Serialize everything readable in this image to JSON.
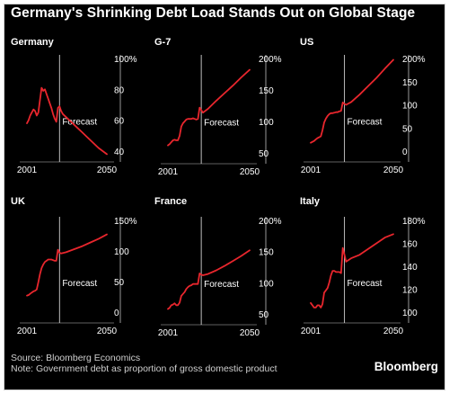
{
  "title": "Germany's Shrinking Debt Load Stands Out on Global Stage",
  "source": "Source: Bloomberg Economics",
  "note": "Note: Government debt as proportion of gross domestic product",
  "brand": "Bloomberg",
  "colors": {
    "background": "#000000",
    "line": "#e8262d",
    "text": "#ffffff",
    "divider": "#bfbfbf"
  },
  "chart_data": [
    {
      "type": "line",
      "title": "Germany",
      "forecast_label": "Forecast",
      "forecast_start": 2021,
      "xlim": [
        2001,
        2050
      ],
      "x_ticks": [
        2001,
        2050
      ],
      "ylim": [
        36,
        102
      ],
      "y_ticks": [
        40,
        60,
        80,
        100
      ],
      "y_tick_labels": [
        "40",
        "60",
        "80",
        "100%"
      ],
      "series": [
        {
          "x": [
            2001,
            2002,
            2003,
            2004,
            2005,
            2006,
            2007,
            2008,
            2009,
            2010,
            2011,
            2012,
            2013,
            2014,
            2015,
            2016,
            2017,
            2018,
            2019,
            2020,
            2021,
            2022,
            2023,
            2025,
            2030,
            2035,
            2040,
            2045,
            2050
          ],
          "y": [
            58,
            60,
            63,
            65,
            67,
            66,
            63,
            65,
            73,
            81,
            79,
            80,
            77,
            74,
            71,
            68,
            64,
            61,
            59,
            68,
            69,
            66,
            64,
            62,
            57,
            52,
            47,
            42,
            38
          ]
        }
      ]
    },
    {
      "type": "line",
      "title": "G-7",
      "forecast_label": "Forecast",
      "forecast_start": 2021,
      "xlim": [
        2001,
        2050
      ],
      "x_ticks": [
        2001,
        2050
      ],
      "ylim": [
        50,
        204
      ],
      "y_ticks": [
        50,
        100,
        150,
        200
      ],
      "y_tick_labels": [
        "50",
        "100",
        "150",
        "200%"
      ],
      "series": [
        {
          "x": [
            2001,
            2002,
            2003,
            2004,
            2005,
            2006,
            2007,
            2008,
            2009,
            2010,
            2011,
            2012,
            2013,
            2014,
            2015,
            2016,
            2017,
            2018,
            2019,
            2020,
            2021,
            2022,
            2025,
            2030,
            2035,
            2040,
            2045,
            2050
          ],
          "y": [
            62,
            64,
            67,
            70,
            71,
            70,
            70,
            77,
            92,
            97,
            100,
            103,
            104,
            104,
            104,
            105,
            104,
            103,
            104,
            122,
            118,
            114,
            120,
            133,
            145,
            157,
            170,
            182
          ]
        }
      ]
    },
    {
      "type": "line",
      "title": "US",
      "forecast_label": "Forecast",
      "forecast_start": 2021,
      "xlim": [
        2001,
        2050
      ],
      "x_ticks": [
        2001,
        2050
      ],
      "ylim": [
        0,
        204
      ],
      "y_ticks": [
        0,
        50,
        100,
        150,
        200
      ],
      "y_tick_labels": [
        "0",
        "50",
        "100",
        "150",
        "200%"
      ],
      "series": [
        {
          "x": [
            2001,
            2002,
            2003,
            2004,
            2005,
            2006,
            2007,
            2008,
            2009,
            2010,
            2011,
            2012,
            2013,
            2014,
            2015,
            2016,
            2017,
            2018,
            2019,
            2020,
            2021,
            2022,
            2025,
            2030,
            2035,
            2040,
            2045,
            2050
          ],
          "y": [
            18,
            20,
            22,
            25,
            28,
            30,
            32,
            45,
            62,
            70,
            76,
            80,
            82,
            82,
            83,
            84,
            84,
            86,
            87,
            105,
            102,
            100,
            106,
            122,
            140,
            158,
            178,
            197
          ]
        }
      ]
    },
    {
      "type": "line",
      "title": "UK",
      "forecast_label": "Forecast",
      "forecast_start": 2021,
      "xlim": [
        2001,
        2050
      ],
      "x_ticks": [
        2001,
        2050
      ],
      "ylim": [
        0,
        150
      ],
      "y_ticks": [
        0,
        50,
        100,
        150
      ],
      "y_tick_labels": [
        "0",
        "50",
        "100",
        "150%"
      ],
      "series": [
        {
          "x": [
            2001,
            2002,
            2003,
            2004,
            2005,
            2006,
            2007,
            2008,
            2009,
            2010,
            2011,
            2012,
            2013,
            2014,
            2015,
            2016,
            2017,
            2018,
            2019,
            2020,
            2021,
            2022,
            2025,
            2030,
            2035,
            2040,
            2045,
            2050
          ],
          "y": [
            27,
            28,
            30,
            32,
            34,
            35,
            37,
            49,
            62,
            72,
            78,
            82,
            84,
            86,
            86,
            86,
            85,
            84,
            84,
            102,
            97,
            96,
            98,
            103,
            108,
            114,
            120,
            127
          ]
        }
      ]
    },
    {
      "type": "line",
      "title": "France",
      "forecast_label": "Forecast",
      "forecast_start": 2021,
      "xlim": [
        2001,
        2050
      ],
      "x_ticks": [
        2001,
        2050
      ],
      "ylim": [
        50,
        204
      ],
      "y_ticks": [
        50,
        100,
        150,
        200
      ],
      "y_tick_labels": [
        "50",
        "100",
        "150",
        "200%"
      ],
      "series": [
        {
          "x": [
            2001,
            2002,
            2003,
            2004,
            2005,
            2006,
            2007,
            2008,
            2009,
            2010,
            2011,
            2012,
            2013,
            2014,
            2015,
            2016,
            2017,
            2018,
            2019,
            2020,
            2021,
            2022,
            2025,
            2030,
            2035,
            2040,
            2045,
            2050
          ],
          "y": [
            58,
            60,
            64,
            65,
            67,
            64,
            64,
            68,
            79,
            82,
            85,
            90,
            93,
            95,
            96,
            98,
            98,
            98,
            98,
            115,
            113,
            112,
            114,
            120,
            127,
            135,
            143,
            152
          ]
        }
      ]
    },
    {
      "type": "line",
      "title": "Italy",
      "forecast_label": "Forecast",
      "forecast_start": 2021,
      "xlim": [
        2001,
        2050
      ],
      "x_ticks": [
        2001,
        2050
      ],
      "ylim": [
        96,
        182
      ],
      "y_ticks": [
        100,
        120,
        140,
        160,
        180
      ],
      "y_tick_labels": [
        "100",
        "120",
        "140",
        "160",
        "180%"
      ],
      "series": [
        {
          "x": [
            2001,
            2002,
            2003,
            2004,
            2005,
            2006,
            2007,
            2008,
            2009,
            2010,
            2011,
            2012,
            2013,
            2014,
            2015,
            2016,
            2017,
            2018,
            2019,
            2020,
            2021,
            2022,
            2025,
            2030,
            2035,
            2040,
            2045,
            2050
          ],
          "y": [
            108,
            106,
            104,
            104,
            106,
            106,
            104,
            107,
            117,
            119,
            121,
            126,
            132,
            136,
            136,
            135,
            135,
            135,
            134,
            156,
            150,
            144,
            147,
            150,
            155,
            160,
            165,
            168
          ]
        }
      ]
    }
  ]
}
